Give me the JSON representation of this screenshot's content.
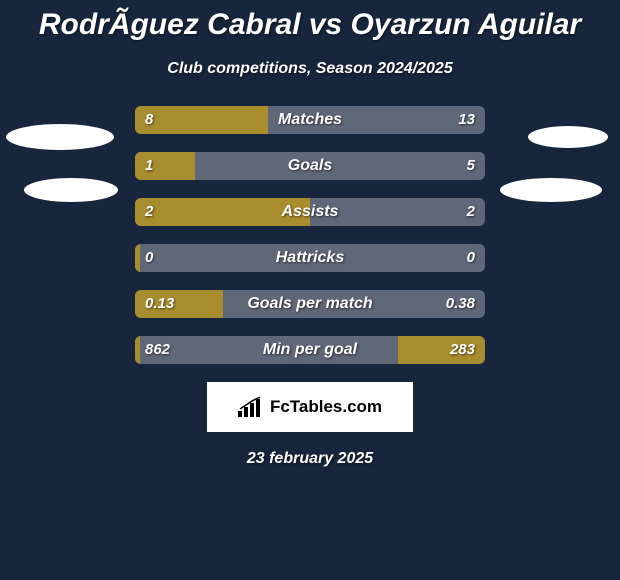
{
  "title": "RodrÃ­guez Cabral vs Oyarzun Aguilar",
  "subtitle": "Club competitions, Season 2024/2025",
  "date": "23 february 2025",
  "logo_text": "FcTables.com",
  "colors": {
    "background": "#17263c",
    "bar_track": "#5f6878",
    "bar_fill": "#a88d2e",
    "text": "#ffffff",
    "logo_bg": "#ffffff",
    "logo_text": "#000000"
  },
  "stats": [
    {
      "label": "Matches",
      "left_value": "8",
      "right_value": "13",
      "left_pct": 38,
      "right_pct": 0
    },
    {
      "label": "Goals",
      "left_value": "1",
      "right_value": "5",
      "left_pct": 17,
      "right_pct": 0
    },
    {
      "label": "Assists",
      "left_value": "2",
      "right_value": "2",
      "left_pct": 50,
      "right_pct": 0
    },
    {
      "label": "Hattricks",
      "left_value": "0",
      "right_value": "0",
      "left_pct": 1.5,
      "right_pct": 0
    },
    {
      "label": "Goals per match",
      "left_value": "0.13",
      "right_value": "0.38",
      "left_pct": 25,
      "right_pct": 0
    },
    {
      "label": "Min per goal",
      "left_value": "862",
      "right_value": "283",
      "left_pct": 1.5,
      "right_pct": 25
    }
  ]
}
